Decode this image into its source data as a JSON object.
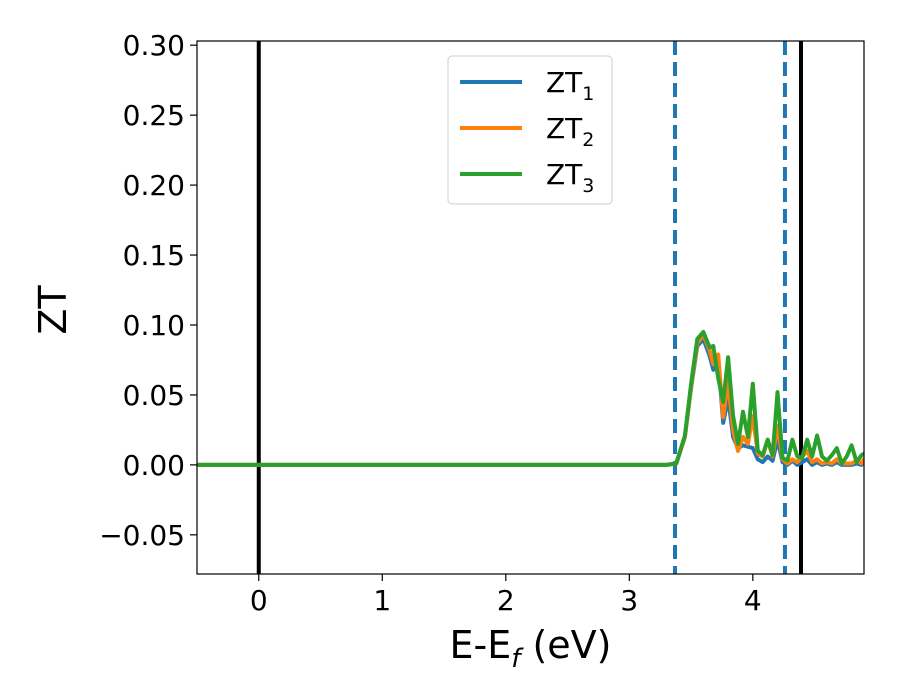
{
  "chart_data": {
    "type": "line",
    "xlabel": {
      "main": "E-E",
      "sub": "f",
      "tail": " (eV)"
    },
    "ylabel": "ZT",
    "xlim": [
      -0.5,
      4.9
    ],
    "ylim": [
      -0.078,
      0.303
    ],
    "x_ticks": [
      0,
      1,
      2,
      3,
      4
    ],
    "x_tick_labels": [
      "0",
      "1",
      "2",
      "3",
      "4"
    ],
    "y_ticks": [
      -0.05,
      0.0,
      0.05,
      0.1,
      0.15,
      0.2,
      0.25,
      0.3
    ],
    "y_tick_labels": [
      "−0.05",
      "0.00",
      "0.05",
      "0.10",
      "0.15",
      "0.20",
      "0.25",
      "0.30"
    ],
    "grid": false,
    "legend_position": "top-center",
    "vlines": [
      {
        "x": 0.0,
        "color": "#000000",
        "style": "solid"
      },
      {
        "x": 3.37,
        "color": "#1f77b4",
        "style": "dashed"
      },
      {
        "x": 4.26,
        "color": "#1f77b4",
        "style": "dashed"
      },
      {
        "x": 4.39,
        "color": "#000000",
        "style": "solid"
      }
    ],
    "series": [
      {
        "name_main": "ZT",
        "name_sub": "1",
        "color": "#1f77b4",
        "x": [
          -0.5,
          3.3,
          3.38,
          3.45,
          3.5,
          3.55,
          3.6,
          3.65,
          3.68,
          3.72,
          3.76,
          3.8,
          3.84,
          3.88,
          3.92,
          3.96,
          4.0,
          4.04,
          4.08,
          4.12,
          4.16,
          4.2,
          4.24,
          4.28,
          4.32,
          4.36,
          4.4,
          4.44,
          4.48,
          4.52,
          4.56,
          4.6,
          4.64,
          4.68,
          4.72,
          4.76,
          4.8,
          4.84,
          4.88,
          4.9
        ],
        "y": [
          0.0,
          0.0,
          0.001,
          0.02,
          0.055,
          0.085,
          0.09,
          0.078,
          0.068,
          0.075,
          0.03,
          0.048,
          0.02,
          0.012,
          0.014,
          0.013,
          0.012,
          0.004,
          0.002,
          0.006,
          0.003,
          0.018,
          0.002,
          0.0,
          0.003,
          0.0,
          0.002,
          0.004,
          0.0,
          0.002,
          0.0,
          0.001,
          0.0,
          0.002,
          0.0,
          0.0,
          0.0,
          0.001,
          0.0,
          0.002
        ]
      },
      {
        "name_main": "ZT",
        "name_sub": "2",
        "color": "#ff7f0e",
        "x": [
          -0.5,
          3.3,
          3.38,
          3.45,
          3.5,
          3.55,
          3.6,
          3.65,
          3.68,
          3.72,
          3.76,
          3.8,
          3.84,
          3.88,
          3.92,
          3.96,
          4.0,
          4.04,
          4.08,
          4.12,
          4.16,
          4.2,
          4.24,
          4.28,
          4.32,
          4.36,
          4.4,
          4.44,
          4.48,
          4.52,
          4.56,
          4.6,
          4.64,
          4.68,
          4.72,
          4.76,
          4.8,
          4.84,
          4.88,
          4.9
        ],
        "y": [
          0.0,
          0.0,
          0.001,
          0.02,
          0.056,
          0.087,
          0.093,
          0.082,
          0.072,
          0.079,
          0.034,
          0.06,
          0.025,
          0.01,
          0.02,
          0.015,
          0.035,
          0.008,
          0.006,
          0.018,
          0.006,
          0.028,
          0.004,
          0.001,
          0.004,
          0.002,
          0.006,
          0.01,
          0.002,
          0.004,
          0.001,
          0.002,
          0.001,
          0.004,
          0.001,
          0.001,
          0.001,
          0.003,
          0.001,
          0.004
        ]
      },
      {
        "name_main": "ZT",
        "name_sub": "3",
        "color": "#2ca02c",
        "x": [
          -0.5,
          3.3,
          3.38,
          3.45,
          3.5,
          3.55,
          3.6,
          3.65,
          3.68,
          3.72,
          3.76,
          3.8,
          3.84,
          3.88,
          3.92,
          3.96,
          4.0,
          4.04,
          4.08,
          4.12,
          4.16,
          4.2,
          4.24,
          4.28,
          4.32,
          4.36,
          4.4,
          4.44,
          4.48,
          4.52,
          4.56,
          4.6,
          4.64,
          4.68,
          4.72,
          4.76,
          4.8,
          4.84,
          4.88,
          4.9
        ],
        "y": [
          0.0,
          0.0,
          0.001,
          0.021,
          0.058,
          0.09,
          0.095,
          0.084,
          0.085,
          0.062,
          0.045,
          0.077,
          0.035,
          0.015,
          0.038,
          0.02,
          0.058,
          0.01,
          0.007,
          0.018,
          0.007,
          0.052,
          0.005,
          0.003,
          0.018,
          0.006,
          0.005,
          0.018,
          0.006,
          0.021,
          0.006,
          0.003,
          0.007,
          0.012,
          0.001,
          0.006,
          0.014,
          0.002,
          0.007,
          0.008
        ]
      }
    ]
  }
}
